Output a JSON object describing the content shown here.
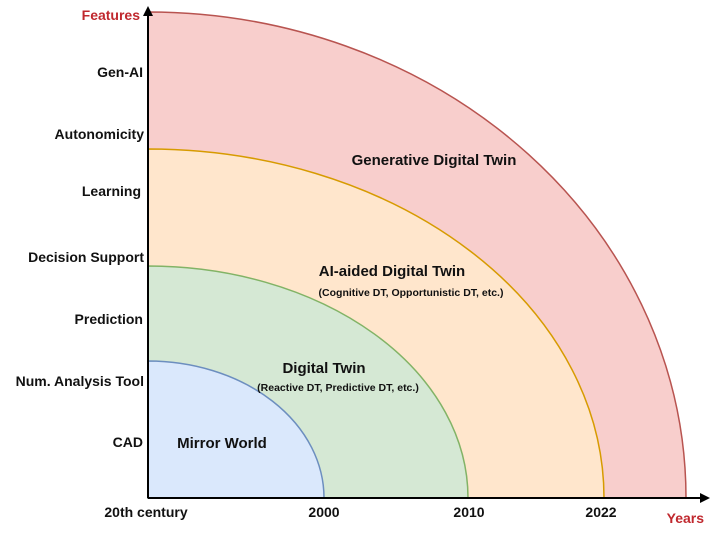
{
  "axes": {
    "y_title": "Features",
    "x_title": "Years",
    "y_levels": [
      "Gen-AI",
      "Autonomicity",
      "Learning",
      "Decision Support",
      "Prediction",
      "Num. Analysis Tool",
      "CAD"
    ],
    "x_ticks": [
      "20th century",
      "2000",
      "2010",
      "2022"
    ],
    "title_color": "#c0282e"
  },
  "regions": [
    {
      "title": "Generative Digital Twin",
      "subtitle": "",
      "fill": "#f8cecc",
      "stroke": "#b85450"
    },
    {
      "title": "AI-aided Digital Twin",
      "subtitle": "(Cognitive DT, Opportunistic DT, etc.)",
      "fill": "#ffe6cc",
      "stroke": "#d79b00"
    },
    {
      "title": "Digital Twin",
      "subtitle": "(Reactive DT, Predictive DT, etc.)",
      "fill": "#d5e8d4",
      "stroke": "#82b366"
    },
    {
      "title": "Mirror World",
      "subtitle": "",
      "fill": "#dae8fc",
      "stroke": "#6c8ebf"
    }
  ]
}
